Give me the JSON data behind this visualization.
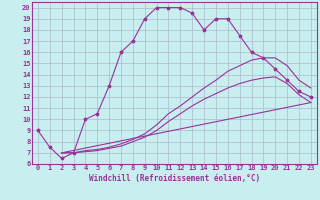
{
  "xlabel": "Windchill (Refroidissement éolien,°C)",
  "xlim": [
    -0.5,
    23.5
  ],
  "ylim": [
    6,
    20.5
  ],
  "xticks": [
    0,
    1,
    2,
    3,
    4,
    5,
    6,
    7,
    8,
    9,
    10,
    11,
    12,
    13,
    14,
    15,
    16,
    17,
    18,
    19,
    20,
    21,
    22,
    23
  ],
  "yticks": [
    6,
    7,
    8,
    9,
    10,
    11,
    12,
    13,
    14,
    15,
    16,
    17,
    18,
    19,
    20
  ],
  "bg_color": "#c8eef0",
  "line_color": "#993399",
  "grid_color": "#aabbcc",
  "line1_x": [
    0,
    1,
    2,
    3,
    4,
    5,
    6,
    7,
    8,
    9,
    10,
    11,
    12,
    13,
    14,
    15,
    16,
    17,
    18,
    19,
    20,
    21,
    22,
    23
  ],
  "line1_y": [
    9,
    7.5,
    6.5,
    7,
    10,
    10.5,
    13,
    16,
    17,
    19,
    20,
    20,
    20,
    19.5,
    18,
    19,
    19,
    17.5,
    16,
    15.5,
    14.5,
    13.5,
    12.5,
    12
  ],
  "line2_x": [
    2,
    3,
    4,
    5,
    6,
    7,
    8,
    9,
    10,
    11,
    12,
    13,
    14,
    15,
    16,
    17,
    18,
    19,
    20,
    21,
    22,
    23
  ],
  "line2_y": [
    7,
    7,
    7.2,
    7.3,
    7.5,
    7.8,
    8.2,
    8.7,
    9.5,
    10.5,
    11.2,
    12,
    12.8,
    13.5,
    14.3,
    14.8,
    15.3,
    15.5,
    15.5,
    14.8,
    13.5,
    12.8
  ],
  "line3_x": [
    2,
    3,
    4,
    5,
    6,
    7,
    8,
    9,
    10,
    11,
    12,
    13,
    14,
    15,
    16,
    17,
    18,
    19,
    20,
    21,
    22,
    23
  ],
  "line3_y": [
    7,
    7,
    7.1,
    7.2,
    7.4,
    7.6,
    8.0,
    8.4,
    9.0,
    9.8,
    10.5,
    11.2,
    11.8,
    12.3,
    12.8,
    13.2,
    13.5,
    13.7,
    13.8,
    13.2,
    12.2,
    11.5
  ],
  "line4_x": [
    2,
    23
  ],
  "line4_y": [
    7,
    11.5
  ],
  "tick_fontsize": 5,
  "label_fontsize": 5.5,
  "lw": 0.8
}
